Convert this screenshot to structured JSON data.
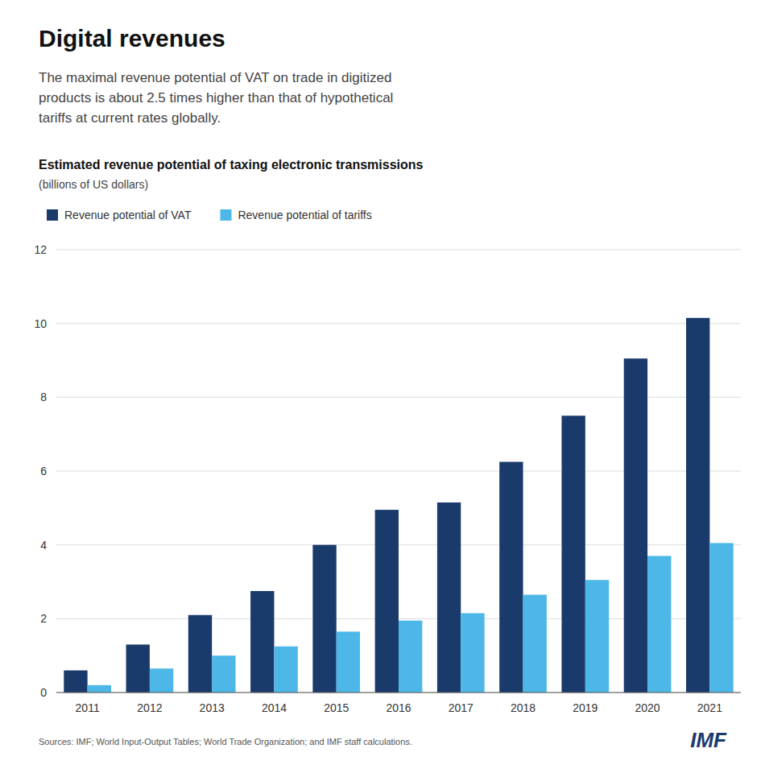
{
  "chart_data": {
    "type": "bar",
    "title": "Digital revenues",
    "subtitle": "The maximal revenue potential of VAT on trade in digitized\nproducts is about 2.5 times higher than that of hypothetical\ntariffs at current rates globally.",
    "annotations": [
      "Estimated revenue potential of taxing electronic transmissions",
      "(billions of US dollars)",
      "Sources: IMF; World Input-Output Tables; World Trade Organization; and IMF staff calculations.",
      "IMF"
    ],
    "categories": [
      "2011",
      "2012",
      "2013",
      "2014",
      "2015",
      "2016",
      "2017",
      "2018",
      "2019",
      "2020",
      "2021"
    ],
    "series": [
      {
        "name": "Revenue potential of VAT",
        "color": "#1a3a6b",
        "values": [
          0.6,
          1.3,
          2.1,
          2.75,
          4.0,
          4.95,
          5.15,
          6.25,
          7.5,
          9.05,
          10.15
        ]
      },
      {
        "name": "Revenue potential of tariffs",
        "color": "#4db8e8",
        "values": [
          0.2,
          0.65,
          1.0,
          1.25,
          1.65,
          1.95,
          2.15,
          2.65,
          3.05,
          3.7,
          4.05
        ]
      }
    ],
    "ylim": [
      0,
      12
    ],
    "yticks": [
      0,
      2,
      4,
      6,
      8,
      10,
      12
    ],
    "grid": true,
    "legend": "top"
  }
}
